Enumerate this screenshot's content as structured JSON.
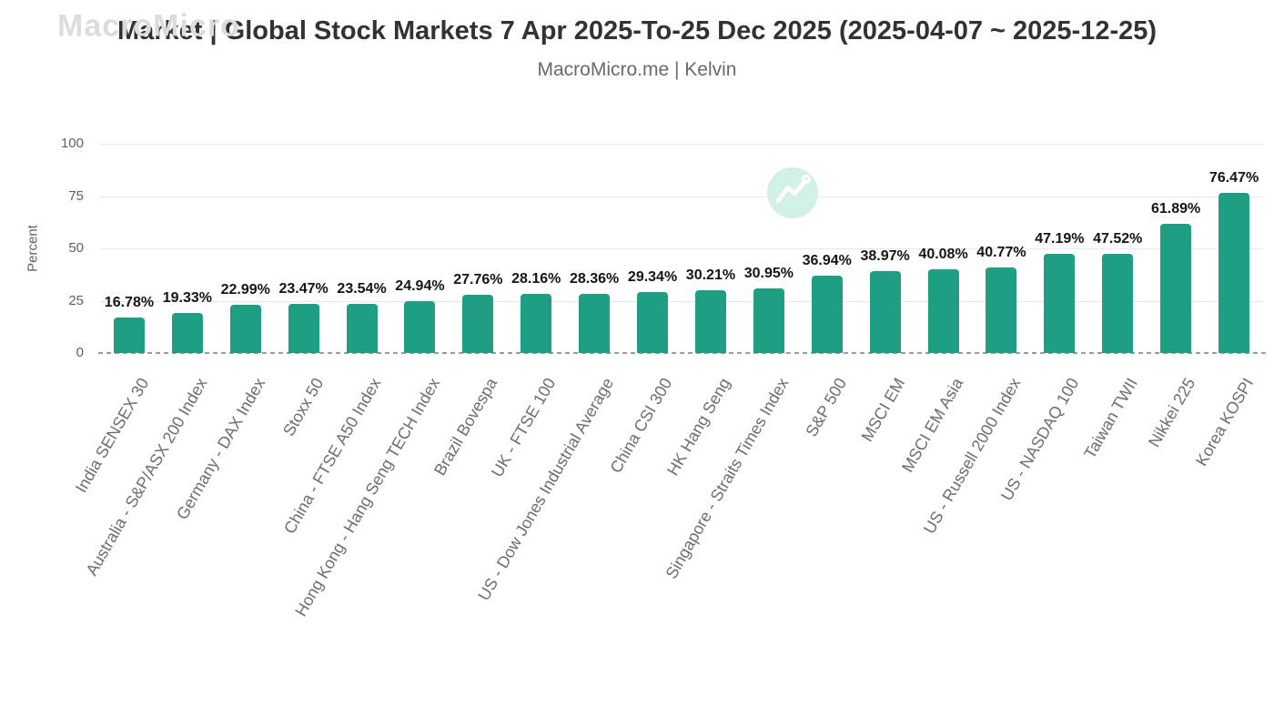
{
  "page": {
    "title": "Market | Global Stock Markets 7 Apr 2025-To-25 Dec 2025 (2025-04-07 ~ 2025-12-25)",
    "subtitle": "MacroMicro.me | Kelvin"
  },
  "watermark": {
    "text": "MacroMicro",
    "icon": "macromicro-logo-icon"
  },
  "colors": {
    "bar": "#1e9e83",
    "grid_line": "#e8e8e8",
    "zero_line": "#9b9b9b",
    "axis_tick_text": "#606060",
    "x_label_text": "#6e6e6e",
    "value_label_text": "#141414",
    "title_text": "#323232",
    "subtitle_text": "#6a6a6a",
    "watermark_text": "#dcdcdc",
    "watermark_circle": "#d2f1e6"
  },
  "chart_data": {
    "type": "bar",
    "title": "Market | Global Stock Markets 7 Apr 2025-To-25 Dec 2025 (2025-04-07 ~ 2025-12-25)",
    "subtitle": "MacroMicro.me | Kelvin",
    "xlabel": "",
    "ylabel": "Percent",
    "ylim": [
      0,
      100
    ],
    "yticks": [
      0,
      25,
      50,
      75,
      100
    ],
    "grid": true,
    "legend": false,
    "bar_unit": "%",
    "categories": [
      "India SENSEX 30",
      "Australia - S&P/ASX 200 Index",
      "Germany - DAX Index",
      "Stoxx 50",
      "China - FTSE A50 Index",
      "Hong Kong - Hang Seng TECH Index",
      "Brazil Bovespa",
      "UK - FTSE 100",
      "US - Dow Jones Industrial Average",
      "China CSI 300",
      "HK Hang Seng",
      "Singapore - Straits Times Index",
      "S&P 500",
      "MSCI EM",
      "MSCI EM Asia",
      "US - Russell 2000 Index",
      "US - NASDAQ 100",
      "Taiwan TWII",
      "Nikkei 225",
      "Korea KOSPI"
    ],
    "values": [
      16.78,
      19.33,
      22.99,
      23.47,
      23.54,
      24.94,
      27.76,
      28.16,
      28.36,
      29.34,
      30.21,
      30.95,
      36.94,
      38.97,
      40.08,
      40.77,
      47.19,
      47.52,
      61.89,
      76.47
    ],
    "value_labels": [
      "16.78%",
      "19.33%",
      "22.99%",
      "23.47%",
      "23.54%",
      "24.94%",
      "27.76%",
      "28.16%",
      "28.36%",
      "29.34%",
      "30.21%",
      "30.95%",
      "36.94%",
      "38.97%",
      "40.08%",
      "40.77%",
      "47.19%",
      "47.52%",
      "61.89%",
      "76.47%"
    ]
  }
}
